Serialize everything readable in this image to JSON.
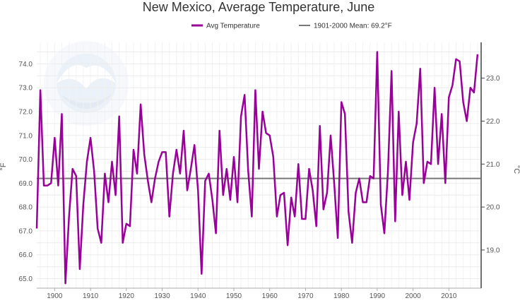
{
  "chart_data": {
    "type": "line",
    "title": "New Mexico, Average Temperature, June",
    "ylabel_left": "°F",
    "ylabel_right": "°C",
    "x_ticks": [
      1900,
      1910,
      1920,
      1930,
      1940,
      1950,
      1960,
      1970,
      1980,
      1990,
      2000,
      2010
    ],
    "y_ticks_f": [
      65.0,
      66.0,
      67.0,
      68.0,
      69.0,
      70.0,
      71.0,
      72.0,
      73.0,
      74.0
    ],
    "y_ticks_c": [
      19.0,
      20.0,
      21.0,
      22.0,
      23.0
    ],
    "xlim": [
      1895,
      2019
    ],
    "ylim_f": [
      64.6,
      74.9
    ],
    "grid": true,
    "legend": "top-center",
    "series": [
      {
        "name": "Avg Temperature",
        "color": "#990099",
        "x": [
          1895,
          1896,
          1897,
          1898,
          1899,
          1900,
          1901,
          1902,
          1903,
          1904,
          1905,
          1906,
          1907,
          1908,
          1909,
          1910,
          1911,
          1912,
          1913,
          1914,
          1915,
          1916,
          1917,
          1918,
          1919,
          1920,
          1921,
          1922,
          1923,
          1924,
          1925,
          1926,
          1927,
          1928,
          1929,
          1930,
          1931,
          1932,
          1933,
          1934,
          1935,
          1936,
          1937,
          1938,
          1939,
          1940,
          1941,
          1942,
          1943,
          1944,
          1945,
          1946,
          1947,
          1948,
          1949,
          1950,
          1951,
          1952,
          1953,
          1954,
          1955,
          1956,
          1957,
          1958,
          1959,
          1960,
          1961,
          1962,
          1963,
          1964,
          1965,
          1966,
          1967,
          1968,
          1969,
          1970,
          1971,
          1972,
          1973,
          1974,
          1975,
          1976,
          1977,
          1978,
          1979,
          1980,
          1981,
          1982,
          1983,
          1984,
          1985,
          1986,
          1987,
          1988,
          1989,
          1990,
          1991,
          1992,
          1993,
          1994,
          1995,
          1996,
          1997,
          1998,
          1999,
          2000,
          2001,
          2002,
          2003,
          2004,
          2005,
          2006,
          2007,
          2008,
          2009,
          2010,
          2011,
          2012,
          2013,
          2014,
          2015,
          2016,
          2017,
          2018
        ],
        "values": [
          67.1,
          72.9,
          68.9,
          68.9,
          69.0,
          70.9,
          68.9,
          71.9,
          64.8,
          67.6,
          69.6,
          69.3,
          65.4,
          68.1,
          69.9,
          70.9,
          69.5,
          67.1,
          66.5,
          69.4,
          68.2,
          69.9,
          68.5,
          71.8,
          66.5,
          67.3,
          67.2,
          70.4,
          69.4,
          72.3,
          70.2,
          69.1,
          68.2,
          69.2,
          69.9,
          70.3,
          70.3,
          67.6,
          69.4,
          70.4,
          69.4,
          71.2,
          68.7,
          69.6,
          70.6,
          68.7,
          65.2,
          69.1,
          69.4,
          68.3,
          66.9,
          71.2,
          68.5,
          69.6,
          68.3,
          70.1,
          68.2,
          71.8,
          72.7,
          69.5,
          67.6,
          72.9,
          69.6,
          72.0,
          71.1,
          71.0,
          70.1,
          67.6,
          68.5,
          68.6,
          66.4,
          68.4,
          67.6,
          69.8,
          67.5,
          67.5,
          69.6,
          68.7,
          67.2,
          71.4,
          67.9,
          68.6,
          71.0,
          69.0,
          66.7,
          72.4,
          71.9,
          67.8,
          66.5,
          68.6,
          69.2,
          68.2,
          68.2,
          69.3,
          69.2,
          74.5,
          68.1,
          66.9,
          69.5,
          73.7,
          67.4,
          72.0,
          68.5,
          69.9,
          68.3,
          70.7,
          71.5,
          73.8,
          69.0,
          69.9,
          69.8,
          73.0,
          69.8,
          71.9,
          69.0,
          72.6,
          73.1,
          74.2,
          74.1,
          72.4,
          71.6,
          73.0,
          72.8,
          74.4
        ]
      },
      {
        "name": "1901-2000 Mean: 69.2°F",
        "color": "#777777",
        "mean": 69.2
      }
    ]
  }
}
